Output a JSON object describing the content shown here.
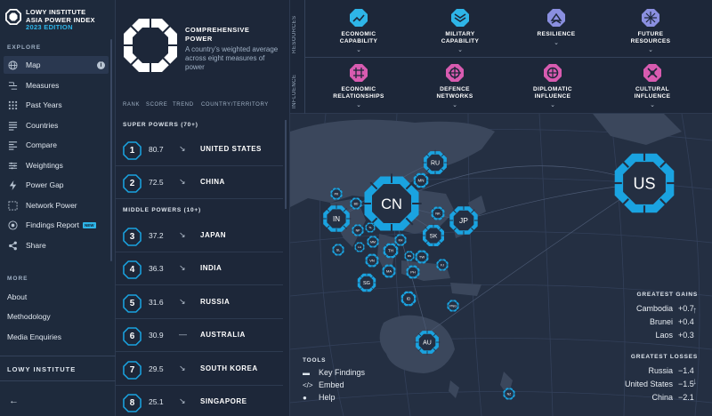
{
  "brand": {
    "line1": "LOWY INSTITUTE",
    "line2": "ASIA POWER INDEX",
    "line3": "2023 EDITION"
  },
  "nav": {
    "explore_label": "EXPLORE",
    "items": [
      {
        "label": "Map",
        "icon": "globe-icon"
      },
      {
        "label": "Measures",
        "icon": "measures-icon"
      },
      {
        "label": "Past Years",
        "icon": "grid-icon"
      },
      {
        "label": "Countries",
        "icon": "list-icon"
      },
      {
        "label": "Compare",
        "icon": "compare-icon"
      },
      {
        "label": "Weightings",
        "icon": "sliders-icon"
      },
      {
        "label": "Power Gap",
        "icon": "bolt-icon"
      },
      {
        "label": "Network Power",
        "icon": "network-icon"
      },
      {
        "label": "Findings Report",
        "icon": "report-icon",
        "badge": "NEW"
      },
      {
        "label": "Share",
        "icon": "share-icon"
      }
    ],
    "more_label": "MORE",
    "more_items": [
      "About",
      "Methodology",
      "Media Enquiries"
    ],
    "footer_label": "LOWY INSTITUTE"
  },
  "panel": {
    "title_line1": "COMPREHENSIVE",
    "title_line2": "POWER",
    "description": "A country's weighted average across eight measures of power",
    "columns": [
      "RANK",
      "SCORE",
      "TREND",
      "COUNTRY/TERRITORY"
    ],
    "groups": [
      {
        "label": "SUPER POWERS (70+)",
        "rows": [
          {
            "rank": "1",
            "score": "80.7",
            "trend": "↘",
            "name": "UNITED STATES"
          },
          {
            "rank": "2",
            "score": "72.5",
            "trend": "↘",
            "name": "CHINA"
          }
        ]
      },
      {
        "label": "MIDDLE POWERS (10+)",
        "rows": [
          {
            "rank": "3",
            "score": "37.2",
            "trend": "↘",
            "name": "JAPAN"
          },
          {
            "rank": "4",
            "score": "36.3",
            "trend": "↘",
            "name": "INDIA"
          },
          {
            "rank": "5",
            "score": "31.6",
            "trend": "↘",
            "name": "RUSSIA"
          },
          {
            "rank": "6",
            "score": "30.9",
            "trend": "—",
            "name": "AUSTRALIA"
          },
          {
            "rank": "7",
            "score": "29.5",
            "trend": "↘",
            "name": "SOUTH KOREA"
          },
          {
            "rank": "8",
            "score": "25.1",
            "trend": "↘",
            "name": "SINGAPORE"
          }
        ]
      }
    ]
  },
  "measures": {
    "resources_label": "RESOURCES",
    "influence_label": "INFLUENCE",
    "resources": [
      {
        "line1": "ECONOMIC",
        "line2": "CAPABILITY",
        "icon": "economic-capability-icon",
        "color": "#2eb5e8"
      },
      {
        "line1": "MILITARY",
        "line2": "CAPABILITY",
        "icon": "military-capability-icon",
        "color": "#2eb5e8"
      },
      {
        "line1": "RESILIENCE",
        "line2": "",
        "icon": "resilience-icon",
        "color": "#8a8fe0"
      },
      {
        "line1": "FUTURE",
        "line2": "RESOURCES",
        "icon": "future-resources-icon",
        "color": "#8a8fe0"
      }
    ],
    "influence": [
      {
        "line1": "ECONOMIC",
        "line2": "RELATIONSHIPS",
        "icon": "economic-relationships-icon",
        "color": "#d85bb0"
      },
      {
        "line1": "DEFENCE",
        "line2": "NETWORKS",
        "icon": "defence-networks-icon",
        "color": "#d85bb0"
      },
      {
        "line1": "DIPLOMATIC",
        "line2": "INFLUENCE",
        "icon": "diplomatic-influence-icon",
        "color": "#d85bb0"
      },
      {
        "line1": "CULTURAL",
        "line2": "INFLUENCE",
        "icon": "cultural-influence-icon",
        "color": "#d85bb0"
      }
    ]
  },
  "map": {
    "accent": "#1aa3e0",
    "nodes": [
      {
        "code": "US"
      },
      {
        "code": "CN"
      },
      {
        "code": "RU"
      },
      {
        "code": "IN"
      },
      {
        "code": "JP"
      },
      {
        "code": "SK"
      },
      {
        "code": "AU"
      },
      {
        "code": "SG"
      },
      {
        "code": "TH"
      },
      {
        "code": "VN"
      },
      {
        "code": "MA"
      },
      {
        "code": "ID"
      },
      {
        "code": "PH"
      },
      {
        "code": "TW"
      },
      {
        "code": "NK"
      },
      {
        "code": "PK"
      },
      {
        "code": "BD"
      },
      {
        "code": "NP"
      },
      {
        "code": "SL"
      },
      {
        "code": "MM"
      },
      {
        "code": "LA"
      },
      {
        "code": "KH"
      },
      {
        "code": "BN"
      },
      {
        "code": "MN"
      },
      {
        "code": "NZ"
      },
      {
        "code": "PNG"
      },
      {
        "code": "TL"
      },
      {
        "code": "FJ"
      }
    ],
    "tools": {
      "title": "TOOLS",
      "items": [
        "Key Findings",
        "Embed",
        "Help"
      ]
    },
    "gains": {
      "title": "GREATEST GAINS",
      "rows": [
        {
          "name": "Cambodia",
          "value": "+0.7"
        },
        {
          "name": "Brunei",
          "value": "+0.4"
        },
        {
          "name": "Laos",
          "value": "+0.3"
        }
      ]
    },
    "losses": {
      "title": "GREATEST LOSSES",
      "rows": [
        {
          "name": "Russia",
          "value": "−1.4"
        },
        {
          "name": "United States",
          "value": "−1.5"
        },
        {
          "name": "China",
          "value": "−2.1"
        }
      ]
    }
  }
}
